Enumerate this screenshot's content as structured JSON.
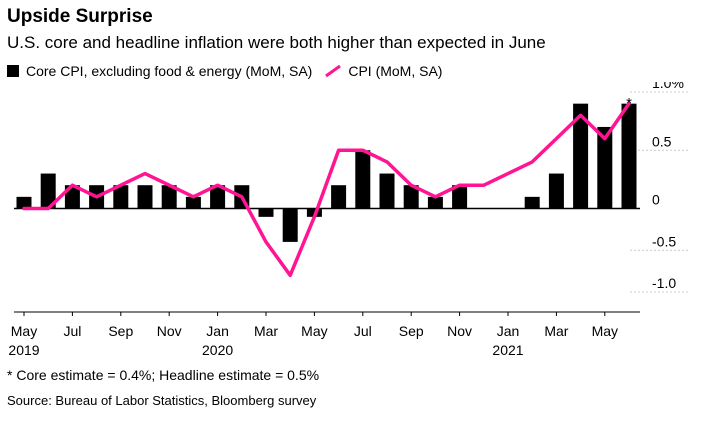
{
  "title": "Upside Surprise",
  "subtitle": "U.S. core and headline inflation were both higher than expected in June",
  "note": "* Core estimate = 0.4%; Headline estimate = 0.5%",
  "source": "Source: Bureau of Labor Statistics, Bloomberg survey",
  "colors": {
    "bar": "#000000",
    "line": "#ff1493",
    "axis": "#000000",
    "grid": "#cccccc"
  },
  "chart_data": {
    "type": "bar",
    "categories": [
      "May 2019",
      "Jun 2019",
      "Jul 2019",
      "Aug 2019",
      "Sep 2019",
      "Oct 2019",
      "Nov 2019",
      "Dec 2019",
      "Jan 2020",
      "Feb 2020",
      "Mar 2020",
      "Apr 2020",
      "May 2020",
      "Jun 2020",
      "Jul 2020",
      "Aug 2020",
      "Sep 2020",
      "Oct 2020",
      "Nov 2020",
      "Dec 2020",
      "Jan 2021",
      "Feb 2021",
      "Mar 2021",
      "Apr 2021",
      "May 2021",
      "Jun 2021"
    ],
    "series": [
      {
        "name": "Core CPI, excluding food & energy (MoM, SA)",
        "kind": "bar",
        "values": [
          0.1,
          0.3,
          0.2,
          0.2,
          0.2,
          0.2,
          0.2,
          0.1,
          0.2,
          0.2,
          -0.1,
          -0.4,
          -0.1,
          0.2,
          0.5,
          0.3,
          0.2,
          0.1,
          0.2,
          0.0,
          0.0,
          0.1,
          0.3,
          0.9,
          0.7,
          0.9
        ]
      },
      {
        "name": "CPI (MoM, SA)",
        "kind": "line",
        "values": [
          0.0,
          0.0,
          0.2,
          0.1,
          0.2,
          0.3,
          0.2,
          0.1,
          0.2,
          0.1,
          -0.4,
          -0.8,
          -0.1,
          0.5,
          0.5,
          0.4,
          0.2,
          0.1,
          0.2,
          0.2,
          0.3,
          0.4,
          0.6,
          0.8,
          0.6,
          0.9
        ]
      }
    ],
    "yticks": [
      "1.0%",
      "0.5",
      "0",
      "-0.5",
      "-1.0"
    ],
    "ytick_values": [
      1.0,
      0.5,
      0,
      -0.5,
      -1.0
    ],
    "ylim": [
      -1.0,
      1.0
    ],
    "xticks": [
      {
        "index": 0,
        "month": "May",
        "year": "2019"
      },
      {
        "index": 2,
        "month": "Jul",
        "year": ""
      },
      {
        "index": 4,
        "month": "Sep",
        "year": ""
      },
      {
        "index": 6,
        "month": "Nov",
        "year": ""
      },
      {
        "index": 8,
        "month": "Jan",
        "year": "2020"
      },
      {
        "index": 10,
        "month": "Mar",
        "year": ""
      },
      {
        "index": 12,
        "month": "May",
        "year": ""
      },
      {
        "index": 14,
        "month": "Jul",
        "year": ""
      },
      {
        "index": 16,
        "month": "Sep",
        "year": ""
      },
      {
        "index": 18,
        "month": "Nov",
        "year": ""
      },
      {
        "index": 20,
        "month": "Jan",
        "year": "2021"
      },
      {
        "index": 22,
        "month": "Mar",
        "year": ""
      },
      {
        "index": 24,
        "month": "May",
        "year": ""
      }
    ],
    "annotations": [
      {
        "index": 25,
        "text": "*"
      }
    ],
    "grid": "horizontal",
    "legend_position": "top-left"
  }
}
